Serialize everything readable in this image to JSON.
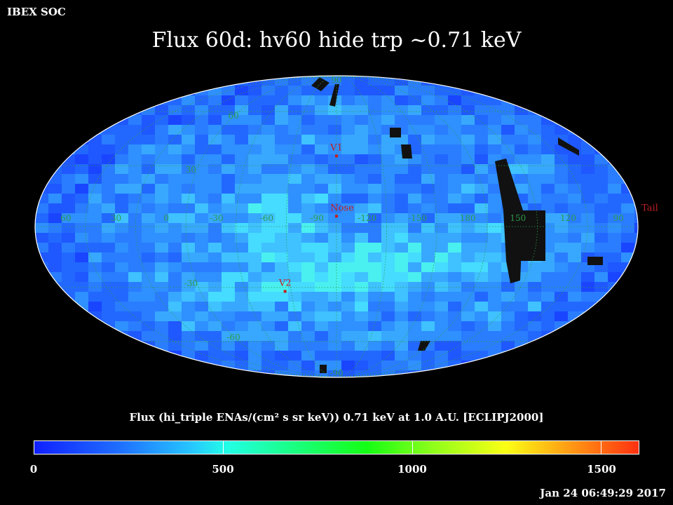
{
  "corner_label": "IBEX SOC",
  "title": "Flux   60d: hv60 hide trp ~0.71 keV",
  "colorbar": {
    "title": "Flux (hi_triple ENAs/(cm² s sr keV))  0.71 keV at 1.0 A.U. [ECLIPJ2000]",
    "min": 0,
    "max": 1600,
    "tick_values": [
      0,
      500,
      1000,
      1500
    ],
    "tick_labels": [
      "0",
      "500",
      "1000",
      "1500"
    ]
  },
  "timestamp": "Jan 24 06:49:29 2017",
  "map": {
    "projection": "mollweide",
    "coordinate_frame": "ECLIPJ2000",
    "center_longitude": 255,
    "grid_color": "#2f9a4a",
    "marker_color": "#c02020",
    "longitude_labels": [
      "60",
      "30",
      "0",
      "-30",
      "-60",
      "-90",
      "-120",
      "-150",
      "180",
      "150",
      "120",
      "90"
    ],
    "longitude_label_values": [
      60,
      30,
      0,
      -30,
      -60,
      -90,
      -120,
      -150,
      180,
      150,
      120,
      90
    ],
    "latitude_labels": [
      "90",
      "60",
      "30",
      "-30",
      "-60",
      "-90"
    ],
    "latitude_label_values": [
      90,
      60,
      30,
      -30,
      -60,
      -90
    ],
    "markers": [
      {
        "label": "V1",
        "lon": 255,
        "lat": 35
      },
      {
        "label": "Nose",
        "lon": 255,
        "lat": 5
      },
      {
        "label": "V2",
        "lon": 289,
        "lat": -32
      },
      {
        "label": "Tail",
        "lon": 75,
        "lat": 5
      }
    ]
  }
}
